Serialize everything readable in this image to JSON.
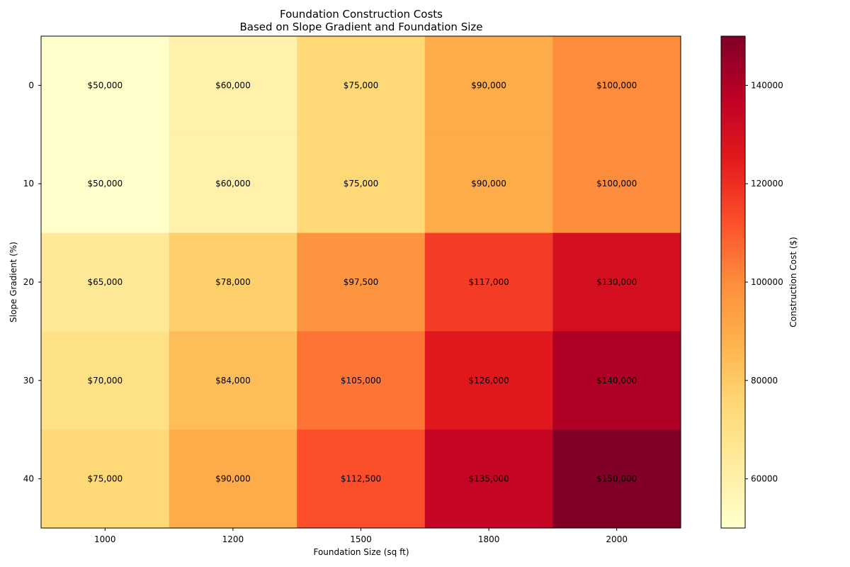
{
  "chart_data": {
    "type": "heatmap",
    "title": "Foundation Construction Costs",
    "subtitle": "Based on Slope Gradient and Foundation Size",
    "xlabel": "Foundation Size (sq ft)",
    "ylabel": "Slope Gradient (%)",
    "x_categories": [
      "1000",
      "1200",
      "1500",
      "1800",
      "2000"
    ],
    "y_categories": [
      "0",
      "10",
      "20",
      "30",
      "40"
    ],
    "values": [
      [
        50000,
        60000,
        75000,
        90000,
        100000
      ],
      [
        50000,
        60000,
        75000,
        90000,
        100000
      ],
      [
        65000,
        78000,
        97500,
        117000,
        130000
      ],
      [
        70000,
        84000,
        105000,
        126000,
        140000
      ],
      [
        75000,
        90000,
        112500,
        135000,
        150000
      ]
    ],
    "cell_labels": [
      [
        "$50,000",
        "$60,000",
        "$75,000",
        "$90,000",
        "$100,000"
      ],
      [
        "$50,000",
        "$60,000",
        "$75,000",
        "$90,000",
        "$100,000"
      ],
      [
        "$65,000",
        "$78,000",
        "$97,500",
        "$117,000",
        "$130,000"
      ],
      [
        "$70,000",
        "$84,000",
        "$105,000",
        "$126,000",
        "$140,000"
      ],
      [
        "$75,000",
        "$90,000",
        "$112,500",
        "$135,000",
        "$150,000"
      ]
    ],
    "colorbar": {
      "label": "Construction Cost ($)",
      "range": [
        50000,
        150000
      ],
      "ticks": [
        "60000",
        "80000",
        "100000",
        "120000",
        "140000"
      ],
      "colormap": "YlOrRd"
    }
  }
}
